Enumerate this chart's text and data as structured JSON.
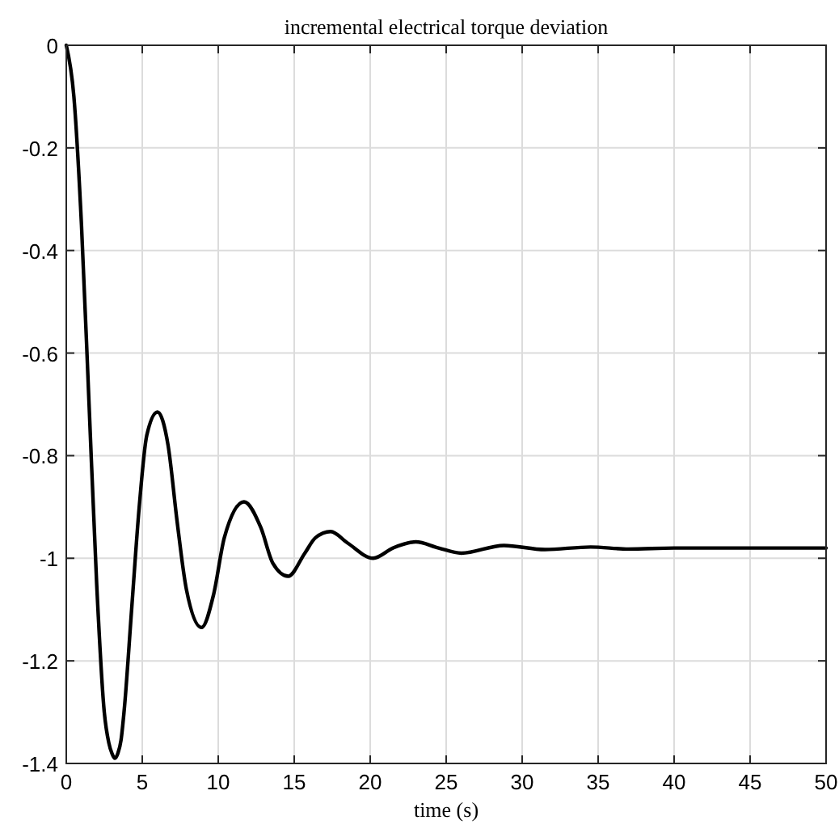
{
  "chart_data": {
    "type": "line",
    "title": "incremental electrical torque deviation",
    "xlabel": "time (s)",
    "xlim": [
      0,
      50
    ],
    "xticks": [
      0,
      5,
      10,
      15,
      20,
      25,
      30,
      35,
      40,
      45,
      50
    ],
    "ylim": [
      -1.4,
      0
    ],
    "yticks": [
      -1.4,
      -1.2,
      -1,
      -0.8,
      -0.6,
      -0.4,
      -0.2,
      0
    ],
    "grid": true,
    "series": [
      {
        "color": "#000000",
        "x": [
          0,
          0.5,
          1,
          1.5,
          2,
          2.5,
          2.8,
          3.0,
          3.2,
          3.4,
          3.6,
          3.8,
          4.3,
          4.8,
          5.3,
          6.0,
          6.7,
          7.3,
          7.9,
          8.9,
          9.7,
          10.4,
          11.7,
          12.8,
          13.6,
          14.6,
          15.7,
          16.4,
          17.4,
          18.5,
          20.2,
          21.5,
          23,
          24.5,
          26,
          28.8,
          31.5,
          34.5,
          37,
          40,
          45,
          50
        ],
        "values": [
          0,
          -0.1,
          -0.35,
          -0.7,
          -1.05,
          -1.3,
          -1.36,
          -1.38,
          -1.39,
          -1.38,
          -1.355,
          -1.3,
          -1.1,
          -0.9,
          -0.76,
          -0.715,
          -0.78,
          -0.93,
          -1.06,
          -1.135,
          -1.07,
          -0.96,
          -0.89,
          -0.94,
          -1.01,
          -1.035,
          -0.99,
          -0.96,
          -0.948,
          -0.97,
          -1.0,
          -0.98,
          -0.968,
          -0.98,
          -0.99,
          -0.975,
          -0.983,
          -0.978,
          -0.982,
          -0.98,
          -0.98,
          -0.98
        ]
      }
    ]
  }
}
